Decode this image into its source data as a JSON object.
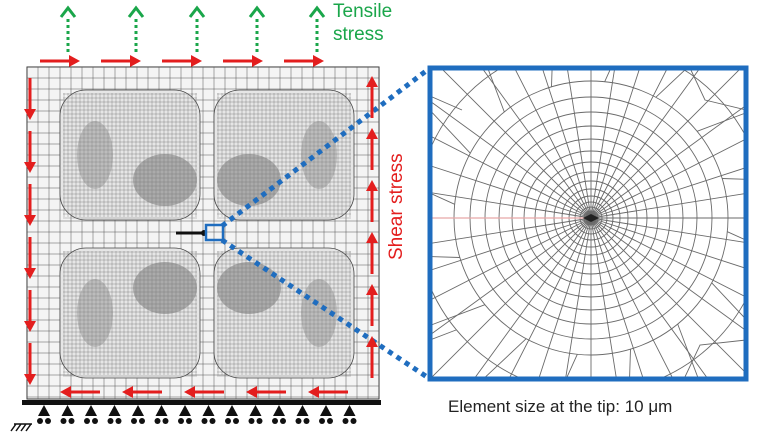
{
  "labels": {
    "tensile_line1": "Tensile",
    "tensile_line2": "stress",
    "shear": "Shear stress",
    "caption": "Element size at the tip: 10 μm"
  },
  "colors": {
    "tensile_arrow": "#1aa64a",
    "shear_arrow": "#e31e1e",
    "zoom_frame": "#1f6dbf",
    "mesh": "#555555",
    "crack_line": "#e8a6a6"
  },
  "icons": {
    "support": "roller-support-icon",
    "ground": "fixed-ground-icon"
  }
}
